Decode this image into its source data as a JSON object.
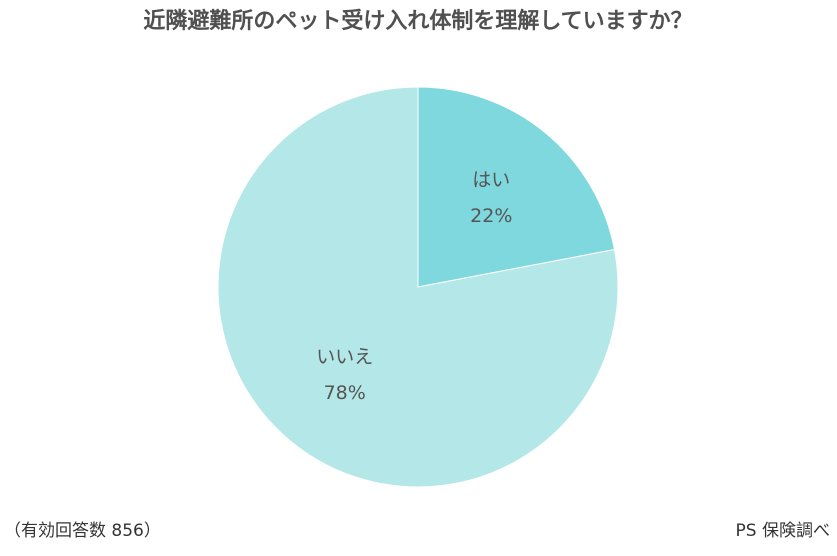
{
  "chart_data": {
    "type": "pie",
    "title": "近隣避難所のペット受け入れ体制を理解していますか？",
    "categories": [
      "はい",
      "いいえ"
    ],
    "values": [
      22,
      78
    ],
    "value_labels": [
      "22%",
      "78%"
    ],
    "colors": [
      "#7fd8dd",
      "#b3e7e8"
    ],
    "note": "（有効回答数 856）",
    "source": "PS 保険調べ"
  }
}
